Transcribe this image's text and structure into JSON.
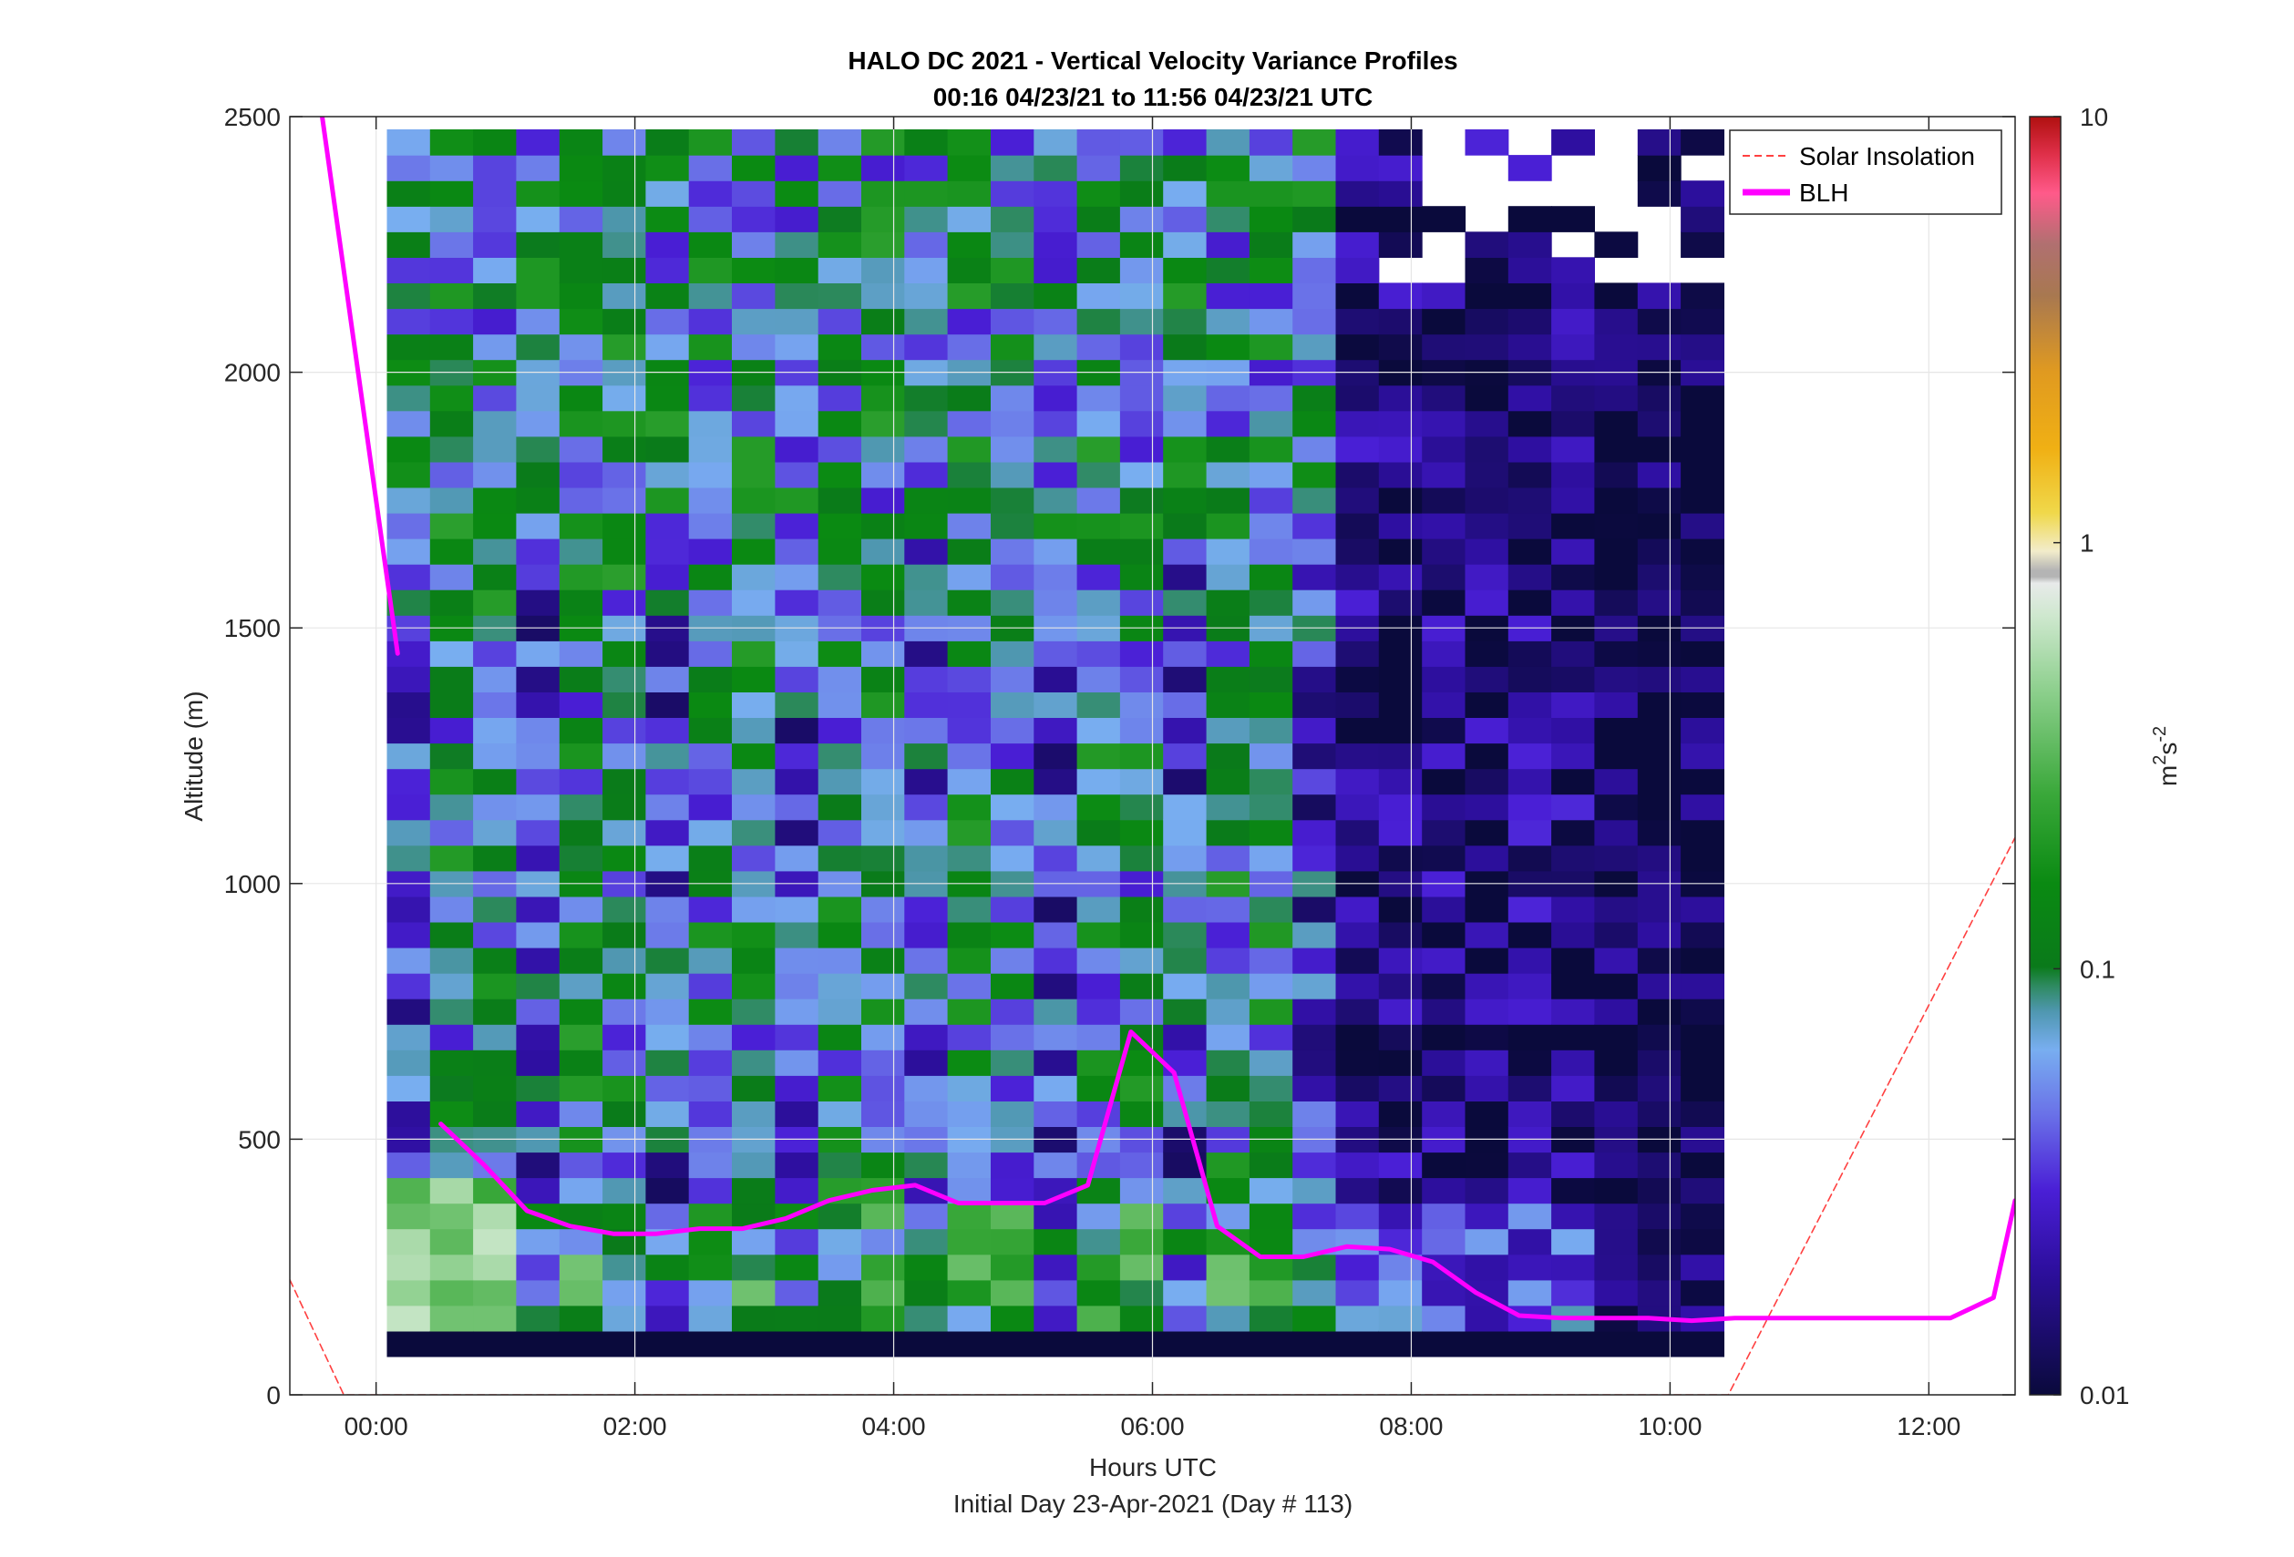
{
  "chart_data": {
    "type": "heatmap",
    "title": "HALO DC 2021 - Vertical Velocity Variance Profiles",
    "subtitle": "00:16 04/23/21 to 11:56 04/23/21  UTC",
    "xlabel": "Hours UTC",
    "xlabel2": "Initial Day 23-Apr-2021 (Day # 113)",
    "ylabel": "Altitude (m)",
    "xlim": [
      -0.6667,
      12.6667
    ],
    "ylim": [
      0,
      2500
    ],
    "grid": true,
    "x_ticks": [
      0,
      2,
      4,
      6,
      8,
      10,
      12
    ],
    "x_tick_labels": [
      "00:00",
      "02:00",
      "04:00",
      "06:00",
      "08:00",
      "10:00",
      "12:00"
    ],
    "y_ticks": [
      0,
      500,
      1000,
      1500,
      2000,
      2500
    ],
    "y_tick_labels": [
      "0",
      "500",
      "1000",
      "1500",
      "2000",
      "2500"
    ],
    "colorbar": {
      "label": "m²s⁻²",
      "label_base": "m",
      "label_exp1": "2",
      "label_mid": "s",
      "label_exp2": "-2",
      "scale": "log",
      "range": [
        0.01,
        10
      ],
      "tick_values": [
        0.01,
        0.1,
        1,
        10
      ],
      "tick_labels": [
        "0.01",
        "0.1",
        "1",
        "10"
      ]
    },
    "heatmap": {
      "time_start_hours": 0.25,
      "time_step_hours": 0.3333,
      "n_time": 31,
      "alt_start_m": 100,
      "alt_step_m": 50,
      "n_alt": 48,
      "values_description_free": true
    },
    "series": [
      {
        "name": "Solar Insolation",
        "color": "#ff4040",
        "style": "dashed",
        "x": [
          -0.6667,
          -0.25,
          10.45,
          12.6667
        ],
        "y": [
          225,
          0,
          0,
          1090
        ]
      },
      {
        "name": "BLH",
        "color": "#ff00ff",
        "style": "solid",
        "segments": [
          {
            "x": [
              -0.4167,
              0.1667
            ],
            "y": [
              2500,
              1450
            ]
          },
          {
            "x": [
              0.5,
              0.8333,
              1.1667,
              1.5,
              1.8333,
              2.1667,
              2.5,
              2.8333,
              3.1667,
              3.5,
              3.8333,
              4.1667,
              4.5,
              4.8333,
              5.1667,
              5.5,
              5.8333,
              6.1667,
              6.5,
              6.8333,
              7.1667,
              7.5,
              7.8333,
              8.1667,
              8.5,
              8.8333,
              9.1667,
              9.5,
              9.8333,
              10.1667,
              10.5,
              10.8333,
              11.1667,
              11.5,
              11.8333,
              12.1667,
              12.5,
              12.6667
            ],
            "y": [
              530,
              450,
              360,
              330,
              315,
              315,
              325,
              325,
              345,
              380,
              400,
              410,
              375,
              375,
              375,
              410,
              710,
              630,
              330,
              270,
              270,
              290,
              285,
              260,
              200,
              155,
              150,
              150,
              150,
              145,
              150,
              150,
              150,
              150,
              150,
              150,
              190,
              380
            ]
          }
        ]
      }
    ],
    "legend": {
      "placement": "top-right",
      "entries": [
        "Solar Insolation",
        "BLH"
      ]
    }
  }
}
